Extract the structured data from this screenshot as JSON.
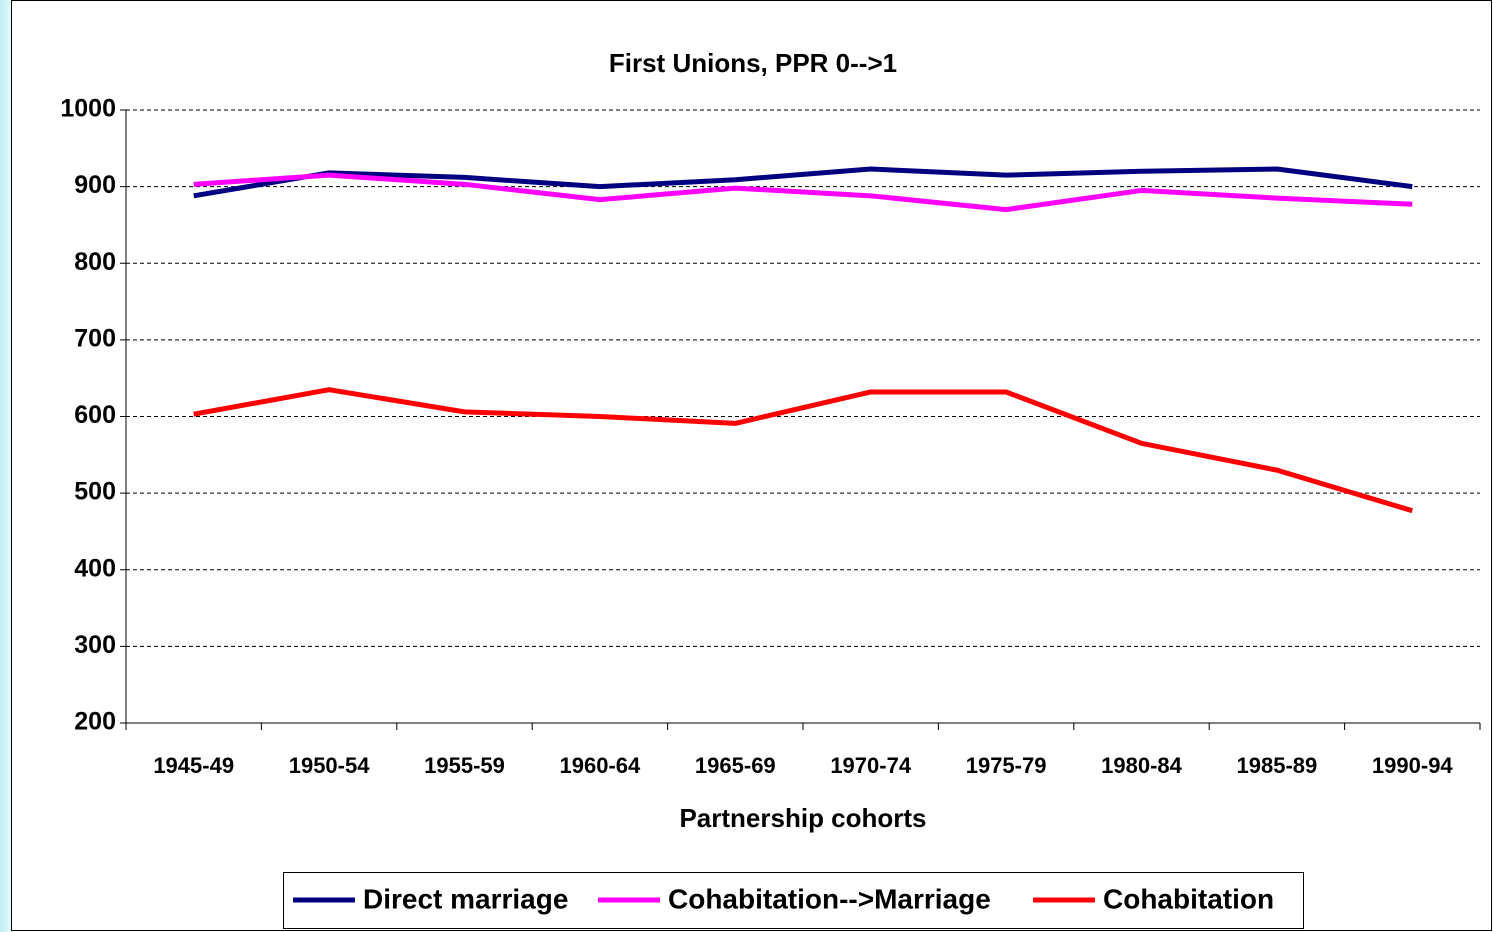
{
  "chart_data": {
    "type": "line",
    "title": "First Unions, PPR 0-->1",
    "x_label": "Partnership cohorts",
    "categories": [
      "1945-49",
      "1950-54",
      "1955-59",
      "1960-64",
      "1965-69",
      "1970-74",
      "1975-79",
      "1980-84",
      "1985-89",
      "1990-94"
    ],
    "series": [
      {
        "name": "Direct marriage",
        "color": "#000080",
        "values": [
          888,
          918,
          912,
          900,
          909,
          923,
          915,
          920,
          923,
          900
        ]
      },
      {
        "name": "Cohabitation-->Marriage",
        "color": "#ff00ff",
        "values": [
          903,
          915,
          903,
          883,
          898,
          888,
          870,
          895,
          885,
          877
        ]
      },
      {
        "name": "Cohabitation",
        "color": "#ff0000",
        "values": [
          603,
          635,
          606,
          600,
          591,
          632,
          632,
          565,
          530,
          477
        ]
      }
    ],
    "ylim": [
      200,
      1000
    ],
    "yticks": [
      200,
      300,
      400,
      500,
      600,
      700,
      800,
      900,
      1000
    ],
    "grid": true,
    "legend": "bottom"
  }
}
